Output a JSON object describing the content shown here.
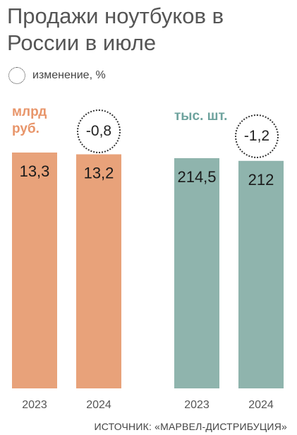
{
  "title": "Продажи ноутбуков в России в июле",
  "legend_label": "изменение, %",
  "source": "ИСТОЧНИК: «МАРВЕЛ-ДИСТРИБУЦИЯ»",
  "colors": {
    "revenue": "#e8a27a",
    "units": "#8fb4ad"
  },
  "chart_data": [
    {
      "type": "bar",
      "unit_label": "млрд руб.",
      "categories": [
        "2023",
        "2024"
      ],
      "values": [
        13.3,
        13.2
      ],
      "value_labels": [
        "13,3",
        "13,2"
      ],
      "change_label": "-0,8",
      "color": "#e8a27a"
    },
    {
      "type": "bar",
      "unit_label": "тыс. шт.",
      "categories": [
        "2023",
        "2024"
      ],
      "values": [
        214.5,
        212
      ],
      "value_labels": [
        "214,5",
        "212"
      ],
      "change_label": "-1,2",
      "color": "#8fb4ad"
    }
  ]
}
